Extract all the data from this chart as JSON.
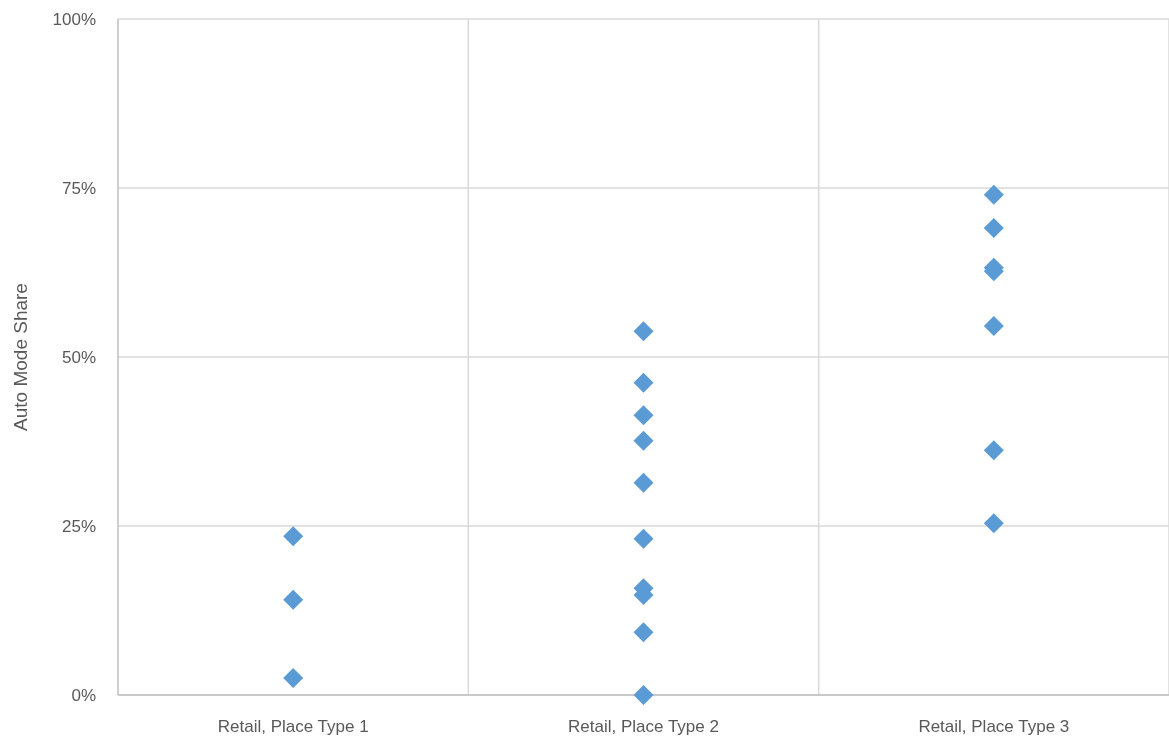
{
  "chart_data": {
    "type": "scatter",
    "ylabel": "Auto Mode Share",
    "categories": [
      "Retail, Place Type 1",
      "Retail, Place Type 2",
      "Retail, Place Type 3"
    ],
    "series": [
      {
        "color": "#5b9bd5",
        "x": [
          "Retail, Place Type 1",
          "Retail, Place Type 1",
          "Retail, Place Type 1",
          "Retail, Place Type 2",
          "Retail, Place Type 2",
          "Retail, Place Type 2",
          "Retail, Place Type 2",
          "Retail, Place Type 2",
          "Retail, Place Type 2",
          "Retail, Place Type 2",
          "Retail, Place Type 2",
          "Retail, Place Type 2",
          "Retail, Place Type 2",
          "Retail, Place Type 3",
          "Retail, Place Type 3",
          "Retail, Place Type 3",
          "Retail, Place Type 3",
          "Retail, Place Type 3",
          "Retail, Place Type 3",
          "Retail, Place Type 3"
        ],
        "values": [
          23.5,
          14.1,
          2.5,
          53.8,
          46.2,
          41.4,
          37.6,
          31.4,
          23.1,
          15.8,
          14.8,
          9.3,
          0,
          74.0,
          69.1,
          63.2,
          62.7,
          54.6,
          36.2,
          25.4
        ]
      }
    ],
    "ylim": [
      0,
      100
    ],
    "yticks": [
      {
        "value": 0,
        "label": "0%"
      },
      {
        "value": 25,
        "label": "25%"
      },
      {
        "value": 50,
        "label": "50%"
      },
      {
        "value": 75,
        "label": "75%"
      },
      {
        "value": 100,
        "label": "100%"
      }
    ],
    "grid": true,
    "marker": "diamond"
  }
}
